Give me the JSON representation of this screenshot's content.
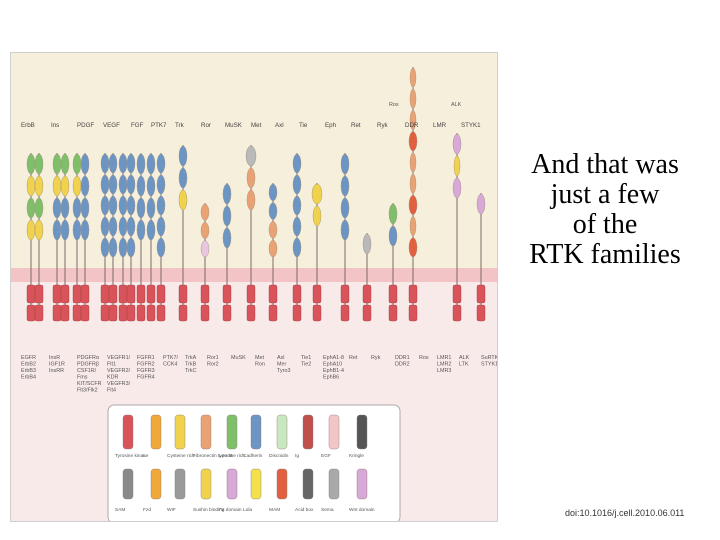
{
  "caption": {
    "lines": [
      "And that was",
      "just a few",
      "of the",
      "RTK families"
    ]
  },
  "doi": "doi:10.1016/j.cell.2010.06.011",
  "colors": {
    "tk": "#d9545a",
    "fn3": "#6d95c4",
    "cys": "#f0d24c",
    "leucine": "#7fbf6a",
    "ig": "#e9a273",
    "ext_band": "#f6efdc",
    "membrane": "#f2c4c6",
    "cyto_band": "#f9eaea"
  },
  "figure": {
    "families": [
      "ErbB",
      "Ins",
      "PDGF",
      "VEGF",
      "FGF",
      "PTK7",
      "Trk",
      "Ror",
      "MuSK",
      "Met",
      "Axl",
      "Tie",
      "Eph",
      "Ret",
      "Ryk",
      "DDR",
      "LMR",
      "STYK1"
    ],
    "extra_labels": {
      "ros": "Ros",
      "alk": "ALK"
    },
    "receptor_groups": [
      [
        "EGFR",
        "ErbB2",
        "ErbB3",
        "ErbB4"
      ],
      [
        "InsR",
        "IGF1R",
        "InsRR"
      ],
      [
        "PDGFRα",
        "PDGFRβ",
        "CSF1R/",
        "Fms",
        "KIT/SCFR",
        "Flt3/Flk2"
      ],
      [
        "VEGFR1/",
        "Flt1",
        "VEGFR2/",
        "KDR",
        "VEGFR3/",
        "Flt4"
      ],
      [
        "FGFR1",
        "FGFR2",
        "FGFR3",
        "FGFR4"
      ],
      [
        "PTK7/",
        "CCK4"
      ],
      [
        "TrkA",
        "TrkB",
        "TrkC"
      ],
      [
        "Ror1",
        "Ror2"
      ],
      [
        "MuSK"
      ],
      [
        "Met",
        "Ron"
      ],
      [
        "Axl",
        "Mer",
        "Tyro3"
      ],
      [
        "Tie1",
        "Tie2"
      ],
      [
        "EphA1-8",
        "EphA10",
        "EphB1-4",
        "EphB6"
      ],
      [
        "Ret"
      ],
      [
        "Ryk"
      ],
      [
        "DDR1",
        "DDR2"
      ],
      [
        "Ros"
      ],
      [
        "LMR1",
        "LMR2",
        "LMR3"
      ],
      [
        "ALK",
        "LTK"
      ],
      [
        "SuRTK106/",
        "STYK1"
      ]
    ],
    "legend": {
      "row1": [
        "Tyrosine kinase",
        "L",
        "Cysteine rich",
        "Fibronectin type III",
        "Leucine rich",
        "Cadherin",
        "Discoidin",
        "Ig",
        "EGF",
        "Kringle"
      ],
      "row2": [
        "SAM",
        "Fzd",
        "WIF",
        "Sushin binding domain",
        "Fz",
        "Lola",
        "MAM",
        "Acid box",
        "Sema",
        "Wnt domain"
      ]
    }
  }
}
